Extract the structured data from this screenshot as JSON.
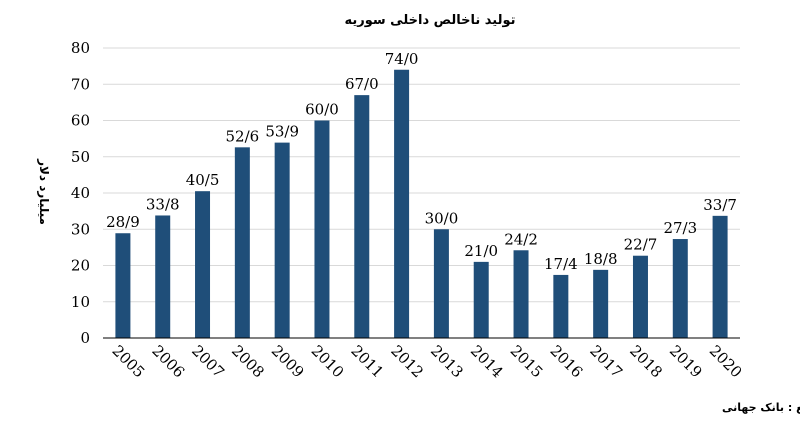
{
  "chart_data": {
    "type": "bar",
    "title": "تولید ناخالص داخلی سوریه",
    "ylabel": "میلیارد دلار",
    "xlabel": "",
    "source": "منبع : بانک جهانی",
    "ylim": [
      0,
      80
    ],
    "yticks": [
      0,
      10,
      20,
      30,
      40,
      50,
      60,
      70,
      80
    ],
    "grid": true,
    "legend": "none",
    "bar_color": "#1f4e79",
    "categories": [
      "2005",
      "2006",
      "2007",
      "2008",
      "2009",
      "2010",
      "2011",
      "2012",
      "2013",
      "2014",
      "2015",
      "2016",
      "2017",
      "2018",
      "2019",
      "2020"
    ],
    "values": [
      28.9,
      33.8,
      40.5,
      52.6,
      53.9,
      60.0,
      67.0,
      74.0,
      30.0,
      21.0,
      24.2,
      17.4,
      18.8,
      22.7,
      27.3,
      33.7
    ],
    "data_labels": [
      "28/9",
      "33/8",
      "40/5",
      "52/6",
      "53/9",
      "60/0",
      "67/0",
      "74/0",
      "30/0",
      "21/0",
      "24/2",
      "17/4",
      "18/8",
      "22/7",
      "27/3",
      "33/7"
    ]
  }
}
